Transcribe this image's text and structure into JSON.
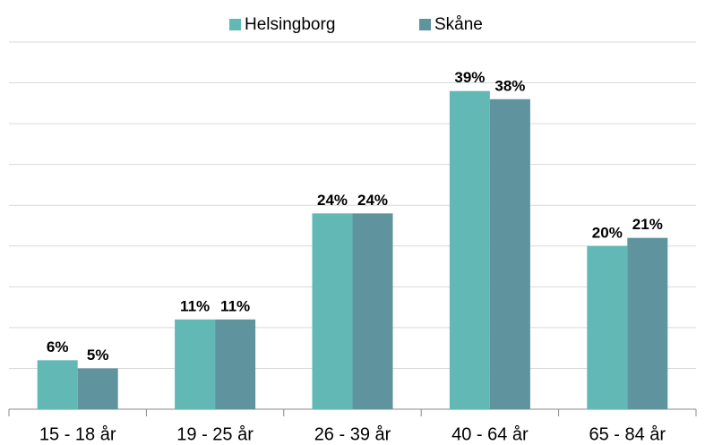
{
  "chart_data": {
    "type": "bar",
    "categories": [
      "15 - 18 år",
      "19 - 25 år",
      "26 - 39 år",
      "40 - 64 år",
      "65 - 84 år"
    ],
    "series": [
      {
        "name": "Helsingborg",
        "color": "#62b8b5",
        "values": [
          6,
          11,
          24,
          39,
          20
        ],
        "value_labels": [
          "6%",
          "11%",
          "24%",
          "39%",
          "20%"
        ]
      },
      {
        "name": "Skåne",
        "color": "#5f949e",
        "values": [
          5,
          11,
          24,
          38,
          21
        ],
        "value_labels": [
          "5%",
          "11%",
          "24%",
          "38%",
          "21%"
        ]
      }
    ],
    "ylim": [
      0,
      45
    ],
    "yticks": [
      0,
      5,
      10,
      15,
      20,
      25,
      30,
      35,
      40,
      45
    ],
    "grid": true,
    "legend": "top"
  }
}
